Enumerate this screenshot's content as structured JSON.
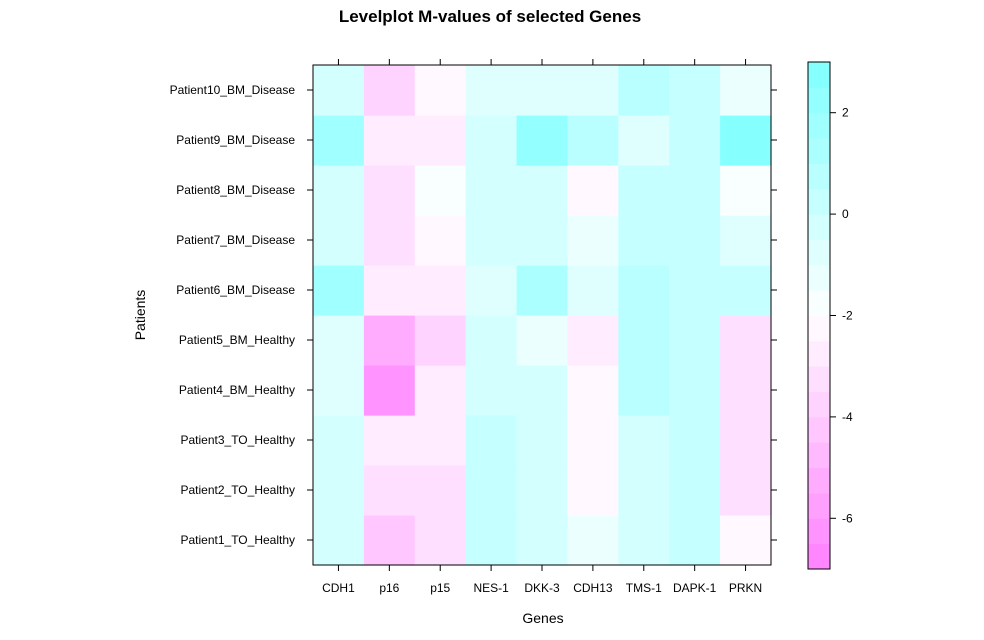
{
  "chart_data": {
    "type": "heatmap",
    "title": "Levelplot M-values of selected Genes",
    "xlabel": "Genes",
    "ylabel": "Patients",
    "x_categories": [
      "CDH1",
      "p16",
      "p15",
      "NES-1",
      "DKK-3",
      "CDH13",
      "TMS-1",
      "DAPK-1",
      "PRKN"
    ],
    "y_categories": [
      "Patient1_TO_Healthy",
      "Patient2_TO_Healthy",
      "Patient3_TO_Healthy",
      "Patient4_BM_Healthy",
      "Patient5_BM_Healthy",
      "Patient6_BM_Disease",
      "Patient7_BM_Disease",
      "Patient8_BM_Disease",
      "Patient9_BM_Disease",
      "Patient10_BM_Disease"
    ],
    "values": [
      [
        -0.5,
        -4.5,
        -3.5,
        0,
        -0.5,
        -1.5,
        -0.5,
        0,
        -2.5
      ],
      [
        -0.5,
        -3.5,
        -3.5,
        0,
        -0.5,
        -2.5,
        -0.5,
        0,
        -3.5
      ],
      [
        -0.5,
        -3.0,
        -3.0,
        0,
        -0.5,
        -2.5,
        -0.5,
        0,
        -3.5
      ],
      [
        -1.0,
        -6.5,
        -3.0,
        -0.5,
        -0.5,
        -2.5,
        0.5,
        0,
        -3.5
      ],
      [
        -1.0,
        -5.5,
        -4.0,
        -0.5,
        -1.5,
        -3.0,
        0.5,
        0,
        -3.5
      ],
      [
        1.5,
        -3.0,
        -3.0,
        -1.0,
        1.0,
        -1.0,
        0.5,
        0,
        0
      ],
      [
        -0.5,
        -3.5,
        -2.5,
        -0.5,
        -0.5,
        -1.5,
        0,
        0,
        -1.0
      ],
      [
        -0.5,
        -3.5,
        -2.0,
        -0.5,
        -0.5,
        -2.5,
        0,
        0,
        -2.0
      ],
      [
        1.5,
        -3.0,
        -3.0,
        -0.5,
        2.0,
        0.5,
        -1.0,
        0,
        2.5
      ],
      [
        -0.5,
        -4.0,
        -2.5,
        -1.0,
        -1.0,
        -1.0,
        0.5,
        0,
        -1.5
      ]
    ],
    "colorbar": {
      "ticks": [
        2,
        0,
        -2,
        -4,
        -6
      ],
      "range": [
        -7,
        3
      ]
    },
    "colormap": {
      "low": "#ff80ff",
      "high": "#80ffff"
    },
    "legend_position": "right"
  }
}
